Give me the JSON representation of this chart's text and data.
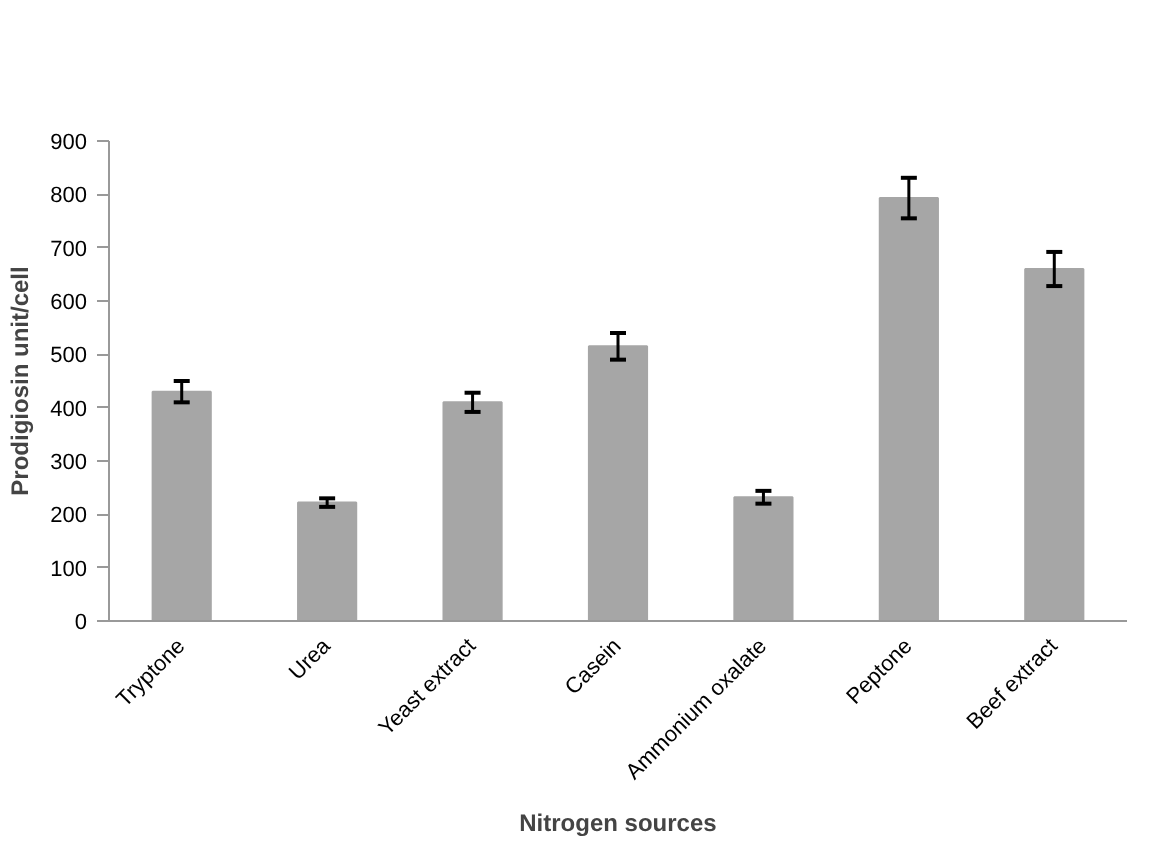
{
  "chart_data": {
    "type": "bar",
    "xlabel": "Nitrogen sources",
    "ylabel": "Prodigiosin unit/cell",
    "categories": [
      "Tryptone",
      "Urea",
      "Yeast extract",
      "Casein",
      "Ammonium oxalate",
      "Peptone",
      "Beef extract"
    ],
    "values": [
      430,
      222,
      410,
      515,
      232,
      793,
      660
    ],
    "errors": [
      20,
      8,
      18,
      25,
      12,
      38,
      32
    ],
    "color": "#a6a6a6",
    "ylim": [
      0,
      900
    ],
    "yticks": [
      0,
      100,
      200,
      300,
      400,
      500,
      600,
      700,
      800,
      900
    ],
    "grid": false
  }
}
